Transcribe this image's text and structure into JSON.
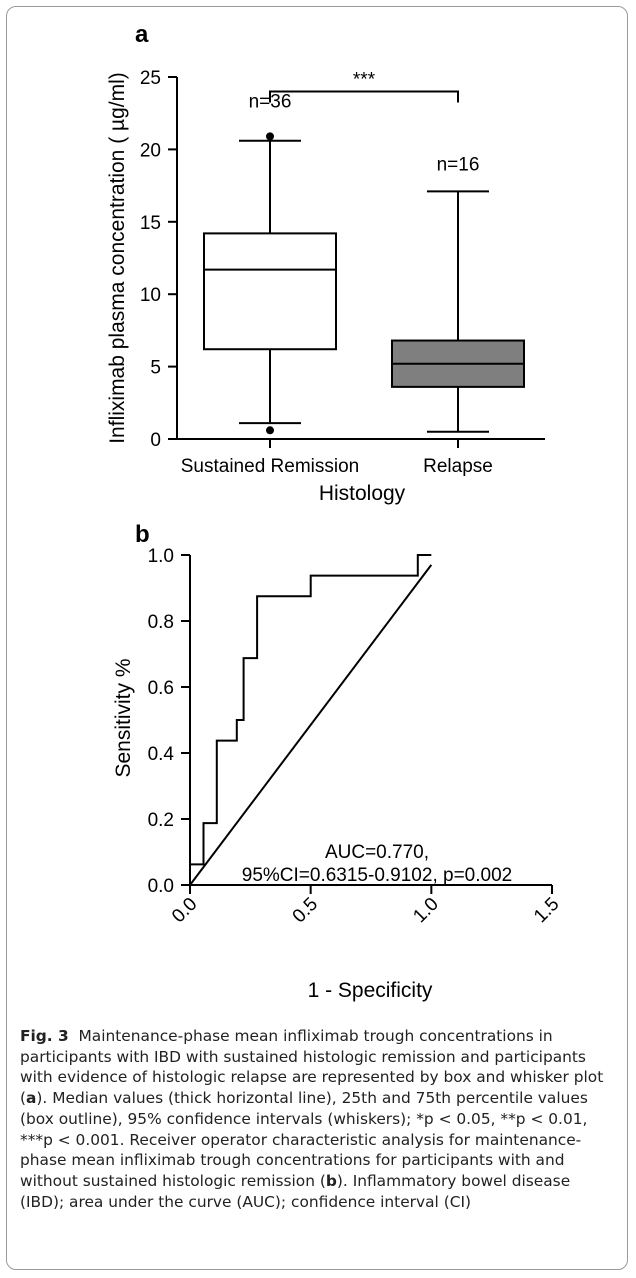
{
  "chart_data": [
    {
      "panel": "a",
      "type": "box",
      "ylabel": "Infliximab plasma concentration ( µg/ml)",
      "xlabel": "Histology",
      "ylim": [
        0,
        25
      ],
      "yticks": [
        0,
        5,
        10,
        15,
        20,
        25
      ],
      "categories": [
        "Sustained Remission",
        "Relapse"
      ],
      "boxes": [
        {
          "name": "Sustained Remission",
          "n_label": "n=36",
          "whisker_low": 1.1,
          "q1": 6.2,
          "median": 11.7,
          "q3": 14.2,
          "whisker_high": 20.6,
          "outliers": [
            20.9,
            0.6
          ],
          "fill": "#ffffff"
        },
        {
          "name": "Relapse",
          "n_label": "n=16",
          "whisker_low": 0.5,
          "q1": 3.6,
          "median": 5.2,
          "q3": 6.8,
          "whisker_high": 17.1,
          "outliers": [],
          "fill": "#7f7f7f"
        }
      ],
      "significance": {
        "label": "***",
        "y": 24.0
      }
    },
    {
      "panel": "b",
      "type": "line",
      "xlabel": "1 - Specificity",
      "ylabel": "Sensitivity %",
      "xlim": [
        0,
        1.5
      ],
      "ylim": [
        0,
        1.0
      ],
      "xticks": [
        "0.0",
        "0.5",
        "1.0",
        "1.5"
      ],
      "yticks": [
        "0.0",
        "0.2",
        "0.4",
        "0.6",
        "0.8",
        "1.0"
      ],
      "series": [
        {
          "x": [
            0,
            0,
            0.056,
            0.056,
            0.111,
            0.111,
            0.167,
            0.167,
            0.194,
            0.194,
            0.222,
            0.222,
            0.25,
            0.25,
            0.278,
            0.278,
            0.5,
            0.5,
            0.917,
            0.917,
            0.944,
            0.944,
            1.0
          ],
          "y": [
            0,
            0.0625,
            0.0625,
            0.1875,
            0.1875,
            0.4375,
            0.4375,
            0.4375,
            0.4375,
            0.5,
            0.5,
            0.6875,
            0.6875,
            0.6875,
            0.6875,
            0.875,
            0.875,
            0.9375,
            0.9375,
            0.9375,
            0.9375,
            1.0,
            1.0
          ]
        },
        {
          "x": [
            0,
            1.0
          ],
          "y": [
            0,
            0.97
          ]
        }
      ],
      "annotation": [
        "AUC=0.770,",
        "95%CI=0.6315-0.9102, p=0.002"
      ]
    }
  ],
  "caption": {
    "fig_label": "Fig. 3",
    "parts": [
      "Maintenance-phase mean infliximab trough concentrations in participants with IBD with sustained histologic remission and participants with evidence of histologic relapse are represented by box and whisker plot (",
      "a",
      "). Median values (thick horizontal line), 25th and 75th percentile values (box outline), 95% confidence intervals (whiskers); *p < 0.05, **p < 0.01, ***p < 0.001. Receiver operator characteristic analysis for maintenance-phase mean infliximab trough concentrations for participants with and without sustained histologic remission (",
      "b",
      "). Inflammatory bowel disease (IBD); area under the curve (AUC); confidence interval (CI)"
    ]
  }
}
